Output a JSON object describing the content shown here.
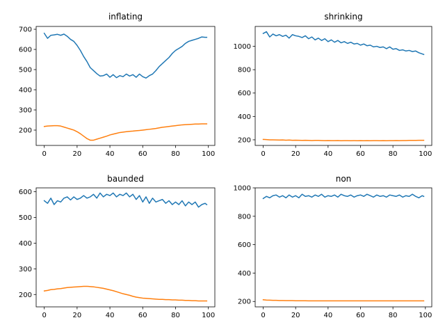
{
  "chart_data": [
    {
      "type": "line",
      "title": "inflating",
      "xlim": [
        -4.95,
        103.95
      ],
      "ylim": [
        124,
        714
      ],
      "xticks": [
        0,
        20,
        40,
        60,
        80,
        100
      ],
      "yticks": [
        200,
        300,
        400,
        500,
        600,
        700
      ],
      "series": [
        {
          "color": "#1f77b4",
          "x": [
            0,
            2,
            4,
            6,
            8,
            10,
            12,
            14,
            16,
            18,
            20,
            22,
            24,
            26,
            28,
            30,
            32,
            34,
            36,
            38,
            40,
            42,
            44,
            46,
            48,
            50,
            52,
            54,
            56,
            58,
            60,
            62,
            64,
            66,
            68,
            70,
            72,
            74,
            76,
            78,
            80,
            82,
            84,
            86,
            88,
            90,
            92,
            94,
            96,
            98,
            99
          ],
          "y": [
            680,
            655,
            670,
            672,
            675,
            670,
            676,
            665,
            650,
            640,
            620,
            595,
            565,
            540,
            510,
            495,
            480,
            468,
            470,
            478,
            462,
            475,
            460,
            470,
            465,
            478,
            468,
            475,
            462,
            478,
            465,
            458,
            470,
            478,
            495,
            515,
            530,
            545,
            560,
            580,
            595,
            605,
            615,
            630,
            640,
            645,
            650,
            655,
            662,
            660,
            660
          ]
        },
        {
          "color": "#ff7f0e",
          "x": [
            0,
            2,
            4,
            6,
            8,
            10,
            12,
            14,
            16,
            18,
            20,
            22,
            24,
            26,
            28,
            30,
            32,
            34,
            36,
            38,
            40,
            42,
            44,
            46,
            48,
            50,
            52,
            54,
            56,
            58,
            60,
            62,
            64,
            66,
            68,
            70,
            72,
            74,
            76,
            78,
            80,
            82,
            84,
            86,
            88,
            90,
            92,
            94,
            96,
            98,
            99
          ],
          "y": [
            218,
            220,
            221,
            222,
            222,
            220,
            215,
            210,
            205,
            200,
            192,
            182,
            170,
            158,
            150,
            150,
            155,
            160,
            165,
            170,
            176,
            180,
            184,
            188,
            190,
            192,
            194,
            195,
            197,
            198,
            200,
            202,
            204,
            206,
            208,
            211,
            214,
            216,
            218,
            220,
            222,
            224,
            226,
            227,
            228,
            229,
            230,
            230,
            231,
            231,
            231
          ]
        }
      ]
    },
    {
      "type": "line",
      "title": "shrinking",
      "xlim": [
        -4.95,
        103.95
      ],
      "ylim": [
        152,
        1170
      ],
      "xticks": [
        0,
        20,
        40,
        60,
        80,
        100
      ],
      "yticks": [
        200,
        400,
        600,
        800,
        1000
      ],
      "series": [
        {
          "color": "#1f77b4",
          "x": [
            0,
            2,
            4,
            6,
            8,
            10,
            12,
            14,
            16,
            18,
            20,
            22,
            24,
            26,
            28,
            30,
            32,
            34,
            36,
            38,
            40,
            42,
            44,
            46,
            48,
            50,
            52,
            54,
            56,
            58,
            60,
            62,
            64,
            66,
            68,
            70,
            72,
            74,
            76,
            78,
            80,
            82,
            84,
            86,
            88,
            90,
            92,
            94,
            96,
            98,
            99
          ],
          "y": [
            1110,
            1125,
            1080,
            1105,
            1090,
            1100,
            1085,
            1095,
            1070,
            1100,
            1090,
            1085,
            1075,
            1090,
            1065,
            1080,
            1055,
            1070,
            1050,
            1065,
            1040,
            1055,
            1035,
            1050,
            1030,
            1040,
            1025,
            1035,
            1020,
            1025,
            1010,
            1020,
            1005,
            1010,
            995,
            1000,
            990,
            995,
            980,
            995,
            975,
            980,
            965,
            970,
            960,
            965,
            955,
            960,
            945,
            935,
            930
          ]
        },
        {
          "color": "#ff7f0e",
          "x": [
            0,
            2,
            4,
            6,
            8,
            10,
            12,
            14,
            16,
            18,
            20,
            22,
            24,
            26,
            28,
            30,
            32,
            34,
            36,
            38,
            40,
            42,
            44,
            46,
            48,
            50,
            52,
            54,
            56,
            58,
            60,
            62,
            64,
            66,
            68,
            70,
            72,
            74,
            76,
            78,
            80,
            82,
            84,
            86,
            88,
            90,
            92,
            94,
            96,
            98,
            99
          ],
          "y": [
            203,
            202,
            200,
            200,
            199,
            198,
            199,
            197,
            198,
            196,
            197,
            196,
            195,
            196,
            195,
            194,
            195,
            195,
            194,
            193,
            194,
            193,
            193,
            194,
            192,
            193,
            193,
            192,
            193,
            192,
            193,
            192,
            193,
            192,
            193,
            193,
            192,
            193,
            192,
            193,
            193,
            194,
            193,
            194,
            194,
            195,
            195,
            195,
            196,
            196,
            196
          ]
        }
      ]
    },
    {
      "type": "line",
      "title": "baunded",
      "xlim": [
        -4.95,
        103.95
      ],
      "ylim": [
        152,
        615
      ],
      "xticks": [
        0,
        20,
        40,
        60,
        80,
        100
      ],
      "yticks": [
        200,
        300,
        400,
        500,
        600
      ],
      "series": [
        {
          "color": "#1f77b4",
          "x": [
            0,
            2,
            4,
            6,
            8,
            10,
            12,
            14,
            16,
            18,
            20,
            22,
            24,
            26,
            28,
            30,
            32,
            34,
            36,
            38,
            40,
            42,
            44,
            46,
            48,
            50,
            52,
            54,
            56,
            58,
            60,
            62,
            64,
            66,
            68,
            70,
            72,
            74,
            76,
            78,
            80,
            82,
            84,
            86,
            88,
            90,
            92,
            94,
            96,
            98,
            99
          ],
          "y": [
            565,
            555,
            575,
            550,
            565,
            560,
            575,
            580,
            568,
            580,
            570,
            575,
            585,
            575,
            580,
            590,
            575,
            595,
            580,
            590,
            585,
            595,
            580,
            590,
            585,
            595,
            580,
            590,
            570,
            585,
            560,
            580,
            555,
            575,
            560,
            565,
            570,
            555,
            565,
            550,
            560,
            550,
            565,
            545,
            560,
            550,
            560,
            540,
            550,
            555,
            550
          ]
        },
        {
          "color": "#ff7f0e",
          "x": [
            0,
            2,
            4,
            6,
            8,
            10,
            12,
            14,
            16,
            18,
            20,
            22,
            24,
            26,
            28,
            30,
            32,
            34,
            36,
            38,
            40,
            42,
            44,
            46,
            48,
            50,
            52,
            54,
            56,
            58,
            60,
            62,
            64,
            66,
            68,
            70,
            72,
            74,
            76,
            78,
            80,
            82,
            84,
            86,
            88,
            90,
            92,
            94,
            96,
            98,
            99
          ],
          "y": [
            214,
            216,
            219,
            220,
            222,
            223,
            225,
            227,
            228,
            229,
            230,
            231,
            232,
            232,
            231,
            230,
            228,
            226,
            224,
            221,
            218,
            215,
            211,
            207,
            203,
            200,
            197,
            193,
            190,
            188,
            186,
            185,
            184,
            183,
            182,
            181,
            181,
            180,
            180,
            179,
            179,
            178,
            178,
            177,
            177,
            176,
            176,
            175,
            175,
            175,
            175
          ]
        }
      ]
    },
    {
      "type": "line",
      "title": "non",
      "xlim": [
        -4.95,
        103.95
      ],
      "ylim": [
        162,
        1000
      ],
      "xticks": [
        0,
        20,
        40,
        60,
        80,
        100
      ],
      "yticks": [
        200,
        400,
        600,
        800,
        1000
      ],
      "series": [
        {
          "color": "#1f77b4",
          "x": [
            0,
            2,
            4,
            6,
            8,
            10,
            12,
            14,
            16,
            18,
            20,
            22,
            24,
            26,
            28,
            30,
            32,
            34,
            36,
            38,
            40,
            42,
            44,
            46,
            48,
            50,
            52,
            54,
            56,
            58,
            60,
            62,
            64,
            66,
            68,
            70,
            72,
            74,
            76,
            78,
            80,
            82,
            84,
            86,
            88,
            90,
            92,
            94,
            96,
            98,
            99
          ],
          "y": [
            925,
            940,
            930,
            945,
            950,
            935,
            945,
            930,
            950,
            935,
            945,
            930,
            955,
            940,
            945,
            935,
            950,
            940,
            955,
            935,
            945,
            940,
            950,
            935,
            955,
            945,
            940,
            950,
            935,
            945,
            950,
            940,
            955,
            945,
            935,
            950,
            940,
            945,
            935,
            950,
            945,
            940,
            950,
            935,
            945,
            940,
            955,
            940,
            930,
            945,
            940
          ]
        },
        {
          "color": "#ff7f0e",
          "x": [
            0,
            2,
            4,
            6,
            8,
            10,
            12,
            14,
            16,
            18,
            20,
            22,
            24,
            26,
            28,
            30,
            32,
            34,
            36,
            38,
            40,
            42,
            44,
            46,
            48,
            50,
            52,
            54,
            56,
            58,
            60,
            62,
            64,
            66,
            68,
            70,
            72,
            74,
            76,
            78,
            80,
            82,
            84,
            86,
            88,
            90,
            92,
            94,
            96,
            98,
            99
          ],
          "y": [
            212,
            210,
            209,
            208,
            208,
            207,
            207,
            206,
            206,
            206,
            205,
            205,
            205,
            205,
            204,
            204,
            204,
            204,
            204,
            204,
            204,
            204,
            204,
            204,
            204,
            204,
            204,
            204,
            204,
            204,
            204,
            204,
            204,
            204,
            204,
            204,
            204,
            204,
            204,
            204,
            204,
            204,
            204,
            204,
            204,
            204,
            204,
            204,
            204,
            204,
            204
          ]
        }
      ]
    }
  ]
}
